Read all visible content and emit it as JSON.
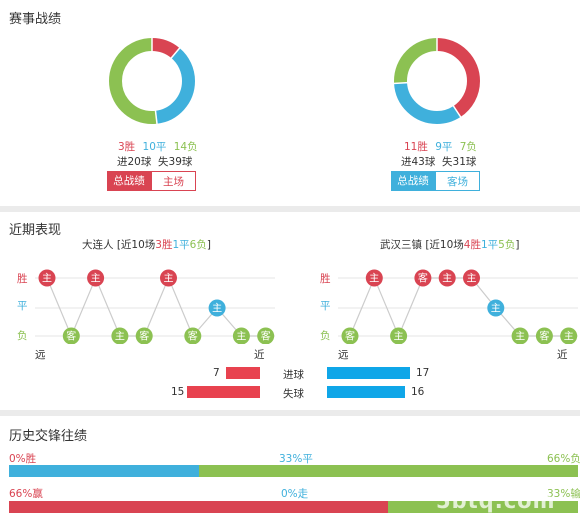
{
  "section1": {
    "title": "赛事战绩",
    "home": {
      "wins": "3胜",
      "draws": "10平",
      "losses": "14负",
      "goals": "进20球  失39球",
      "tab_active": "总战绩",
      "tab_other": "主场",
      "donut": [
        {
          "label": "胜",
          "value": 3,
          "color": "#d94452"
        },
        {
          "label": "平",
          "value": 10,
          "color": "#3fb0dc"
        },
        {
          "label": "负",
          "value": 14,
          "color": "#8cc152"
        }
      ]
    },
    "away": {
      "wins": "11胜",
      "draws": "9平",
      "losses": "7负",
      "goals": "进43球  失31球",
      "tab_active": "总战绩",
      "tab_other": "客场",
      "donut": [
        {
          "label": "胜",
          "value": 11,
          "color": "#d94452"
        },
        {
          "label": "平",
          "value": 9,
          "color": "#3fb0dc"
        },
        {
          "label": "负",
          "value": 7,
          "color": "#8cc152"
        }
      ]
    }
  },
  "section2": {
    "title": "近期表现",
    "axis": {
      "win": "胜",
      "draw": "平",
      "loss": "负",
      "far": "远",
      "near": "近"
    },
    "home": {
      "team": "大连人",
      "summary_pre": " [近10场",
      "w": "3胜",
      "d": "1平",
      "l": "6负",
      "summary_post": "]",
      "results": [
        {
          "r": "W",
          "v": "主"
        },
        {
          "r": "L",
          "v": "客"
        },
        {
          "r": "W",
          "v": "主"
        },
        {
          "r": "L",
          "v": "主"
        },
        {
          "r": "L",
          "v": "客"
        },
        {
          "r": "W",
          "v": "主"
        },
        {
          "r": "L",
          "v": "客"
        },
        {
          "r": "D",
          "v": "主"
        },
        {
          "r": "L",
          "v": "主"
        },
        {
          "r": "L",
          "v": "客"
        }
      ],
      "scored": 7,
      "conceded": 15
    },
    "away": {
      "team": "武汉三镇",
      "summary_pre": " [近10场",
      "w": "4胜",
      "d": "1平",
      "l": "5负",
      "summary_post": "]",
      "results": [
        {
          "r": "L",
          "v": "客"
        },
        {
          "r": "W",
          "v": "主"
        },
        {
          "r": "L",
          "v": "主"
        },
        {
          "r": "W",
          "v": "客"
        },
        {
          "r": "W",
          "v": "主"
        },
        {
          "r": "W",
          "v": "主"
        },
        {
          "r": "D",
          "v": "主"
        },
        {
          "r": "L",
          "v": "主"
        },
        {
          "r": "L",
          "v": "客"
        },
        {
          "r": "L",
          "v": "主"
        }
      ],
      "scored": 17,
      "conceded": 16
    },
    "labels": {
      "scored": "进球",
      "conceded": "失球"
    },
    "colors": {
      "win": "#d94452",
      "draw": "#3fb0dc",
      "loss": "#8cc152",
      "home_bar": "#e8424f",
      "away_bar": "#0fa6e8"
    }
  },
  "section3": {
    "title": "历史交锋往绩",
    "row1": {
      "left": "0%胜",
      "mid": "33%平",
      "right": "66%负",
      "parts": [
        0,
        33,
        66
      ]
    },
    "row2": {
      "left": "66%赢",
      "mid": "0%走",
      "right": "33%输",
      "parts": [
        66,
        0,
        33
      ]
    }
  },
  "watermark": "5btq.com"
}
